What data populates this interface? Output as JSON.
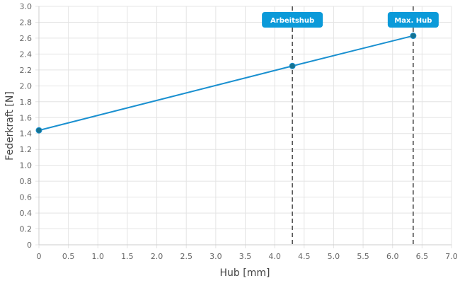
{
  "chart_data": {
    "type": "line",
    "title": "",
    "xlabel": "Hub [mm]",
    "ylabel": "Federkraft [N]",
    "xlim": [
      0,
      7.0
    ],
    "ylim": [
      0,
      3.0
    ],
    "x_ticks": [
      0,
      0.5,
      1.0,
      1.5,
      2.0,
      2.5,
      3.0,
      3.5,
      4.0,
      4.5,
      5.0,
      5.5,
      6.0,
      6.5,
      7.0
    ],
    "x_tick_labels": [
      "0",
      "0.5",
      "1.0",
      "1.5",
      "2.0",
      "2.5",
      "3.0",
      "3.5",
      "4.0",
      "4.5",
      "5.0",
      "5.5",
      "6.0",
      "6.5",
      "7.0"
    ],
    "y_ticks": [
      0,
      0.2,
      0.4,
      0.6,
      0.8,
      1.0,
      1.2,
      1.4,
      1.6,
      1.8,
      2.0,
      2.2,
      2.4,
      2.6,
      2.8,
      3.0
    ],
    "y_tick_labels": [
      "0",
      "0.2",
      "0.4",
      "0.6",
      "0.8",
      "1.0",
      "1.2",
      "1.4",
      "1.6",
      "1.8",
      "2.0",
      "2.2",
      "2.4",
      "2.6",
      "2.8",
      "3.0"
    ],
    "grid": true,
    "legend": "none",
    "series": [
      {
        "x": [
          0,
          4.3,
          6.35
        ],
        "y": [
          1.44,
          2.25,
          2.63
        ],
        "color": "#1a90d0"
      }
    ],
    "markers": [
      {
        "label": "Arbeitshub",
        "x": 4.3
      },
      {
        "label": "Max. Hub",
        "x": 6.35
      }
    ],
    "colors": {
      "line": "#1a90d0",
      "point": "#16728f",
      "label_bg": "#0b9ad9",
      "grid": "#e4e4e4",
      "marker_line": "#444444"
    }
  }
}
